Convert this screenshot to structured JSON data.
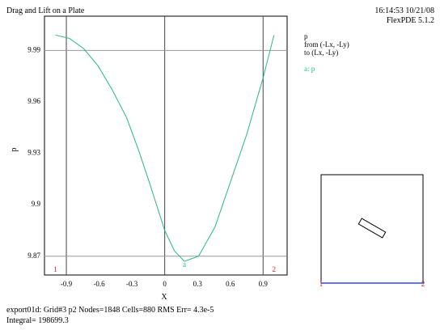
{
  "chart_data": {
    "type": "line",
    "title": "Drag and Lift on a Plate",
    "timestamp": "16:14:53 10/21/08",
    "software": "FlexPDE 5.1.2",
    "legend_title": "p",
    "legend_from": "from (-Lx, -Ly)",
    "legend_to": "to (Lx, -Ly)",
    "x_label": "X",
    "y_label": "p",
    "x": [
      -1.0,
      -0.87,
      -0.74,
      -0.61,
      -0.48,
      -0.35,
      -0.24,
      -0.13,
      0.0,
      0.09,
      0.18,
      0.31,
      0.46,
      0.6,
      0.75,
      0.9,
      1.0
    ],
    "series": [
      {
        "name": "a: p",
        "marker": "a",
        "color": "#22bb88",
        "values": [
          9.999,
          9.997,
          9.991,
          9.981,
          9.967,
          9.951,
          9.932,
          9.911,
          9.885,
          9.873,
          9.867,
          9.87,
          9.887,
          9.913,
          9.941,
          9.974,
          9.999
        ]
      }
    ],
    "xlim": [
      -1.1,
      1.12
    ],
    "ylim": [
      9.859,
      10.01
    ],
    "xticks": [
      -0.9,
      -0.6,
      -0.3,
      0,
      0.3,
      0.6,
      0.9
    ],
    "yticks": [
      9.87,
      9.9,
      9.93,
      9.96,
      9.99
    ],
    "start_label": "1",
    "end_label": "2",
    "footer_line1": "export01d:  Grid#3  p2  Nodes=1848 Cells=880 RMS Err= 4.3e-5",
    "footer_line2": "Integral=  198699.3"
  }
}
